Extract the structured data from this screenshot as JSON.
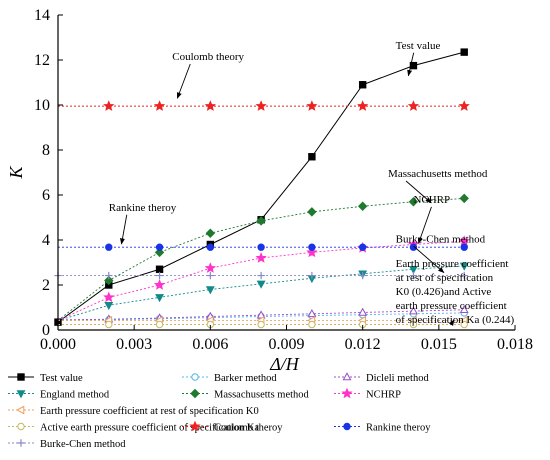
{
  "chart_data": {
    "type": "line",
    "xlabel": "Δ/H",
    "ylabel": "K",
    "xlim": [
      0,
      0.018
    ],
    "ylim": [
      0,
      14
    ],
    "xticks": [
      "0.000",
      "0.003",
      "0.006",
      "0.009",
      "0.012",
      "0.015",
      "0.018"
    ],
    "yticks": [
      "0",
      "2",
      "4",
      "6",
      "8",
      "10",
      "12",
      "14"
    ],
    "grid": false,
    "legend_position": "bottom",
    "series": [
      {
        "name": "Test value",
        "color": "#000000",
        "marker": "square",
        "filled": true,
        "x": [
          0.0,
          0.002,
          0.004,
          0.006,
          0.008,
          0.01,
          0.012,
          0.014,
          0.016
        ],
        "y": [
          0.35,
          2.0,
          2.7,
          3.8,
          4.9,
          7.7,
          10.9,
          11.75,
          12.35
        ]
      },
      {
        "name": "Barker method",
        "color": "#4fb8e6",
        "marker": "circle",
        "filled": false,
        "x": [
          0.0,
          0.002,
          0.004,
          0.006,
          0.008,
          0.01,
          0.012,
          0.014,
          0.016
        ],
        "y": [
          0.42,
          0.45,
          0.5,
          0.55,
          0.6,
          0.64,
          0.68,
          0.72,
          0.76
        ]
      },
      {
        "name": "Dicleli method",
        "color": "#9a4fc8",
        "marker": "triangle-up",
        "filled": false,
        "x": [
          0.0,
          0.002,
          0.004,
          0.006,
          0.008,
          0.01,
          0.012,
          0.014,
          0.016
        ],
        "y": [
          0.45,
          0.48,
          0.53,
          0.6,
          0.66,
          0.72,
          0.78,
          0.84,
          0.9
        ]
      },
      {
        "name": "England method",
        "color": "#138a8a",
        "marker": "triangle-down",
        "filled": true,
        "x": [
          0.0,
          0.002,
          0.004,
          0.006,
          0.008,
          0.01,
          0.012,
          0.014,
          0.016
        ],
        "y": [
          0.42,
          1.1,
          1.45,
          1.8,
          2.05,
          2.3,
          2.5,
          2.7,
          2.85
        ]
      },
      {
        "name": "Massachusetts method",
        "color": "#1e7a2e",
        "marker": "diamond",
        "filled": true,
        "x": [
          0.0,
          0.002,
          0.004,
          0.006,
          0.008,
          0.01,
          0.012,
          0.014,
          0.016
        ],
        "y": [
          0.42,
          2.2,
          3.45,
          4.3,
          4.85,
          5.25,
          5.5,
          5.7,
          5.85
        ]
      },
      {
        "name": "NCHRP",
        "color": "#ff33cc",
        "marker": "star",
        "filled": true,
        "x": [
          0.0,
          0.002,
          0.004,
          0.006,
          0.008,
          0.01,
          0.012,
          0.014,
          0.016
        ],
        "y": [
          0.42,
          1.45,
          2.0,
          2.75,
          3.2,
          3.45,
          3.65,
          3.8,
          3.95
        ]
      },
      {
        "name": "Earth pressure coefficient at rest of specification K0",
        "color": "#f0a060",
        "marker": "triangle-left",
        "filled": false,
        "x": [
          0.0,
          0.002,
          0.004,
          0.006,
          0.008,
          0.01,
          0.012,
          0.014,
          0.016
        ],
        "y": [
          0.426,
          0.426,
          0.426,
          0.426,
          0.426,
          0.426,
          0.426,
          0.426,
          0.426
        ]
      },
      {
        "name": "Active earth pressure coefficient of specification Ka",
        "color": "#c8b860",
        "marker": "circle",
        "filled": false,
        "x": [
          0.0,
          0.002,
          0.004,
          0.006,
          0.008,
          0.01,
          0.012,
          0.014,
          0.016
        ],
        "y": [
          0.244,
          0.244,
          0.244,
          0.244,
          0.244,
          0.244,
          0.244,
          0.244,
          0.244
        ]
      },
      {
        "name": "Coulomb theroy",
        "color": "#ee2222",
        "marker": "star",
        "filled": true,
        "x": [
          0.0,
          0.002,
          0.004,
          0.006,
          0.008,
          0.01,
          0.012,
          0.014,
          0.016
        ],
        "y": [
          9.95,
          9.95,
          9.95,
          9.95,
          9.95,
          9.95,
          9.95,
          9.95,
          9.95
        ]
      },
      {
        "name": "Rankine theroy",
        "color": "#1a33e6",
        "marker": "circle",
        "filled": true,
        "x": [
          0.0,
          0.002,
          0.004,
          0.006,
          0.008,
          0.01,
          0.012,
          0.014,
          0.016
        ],
        "y": [
          3.68,
          3.68,
          3.68,
          3.68,
          3.68,
          3.68,
          3.68,
          3.68,
          3.68
        ]
      },
      {
        "name": "Burke-Chen method",
        "color": "#8888cc",
        "marker": "plus",
        "filled": true,
        "x": [
          0.0,
          0.002,
          0.004,
          0.006,
          0.008,
          0.01,
          0.012,
          0.014,
          0.016
        ],
        "y": [
          2.42,
          2.42,
          2.42,
          2.42,
          2.42,
          2.42,
          2.42,
          2.42,
          2.42
        ]
      }
    ],
    "annotations": [
      {
        "text": "Test value",
        "x": 0.0133,
        "y": 12.5,
        "arrow_to": [
          0.0138,
          11.3
        ]
      },
      {
        "text": "Coulomb theory",
        "x": 0.0045,
        "y": 12.0,
        "arrow_to": [
          0.0047,
          10.3
        ]
      },
      {
        "text": "Massachusetts method",
        "x": 0.013,
        "y": 6.8,
        "arrow_to": [
          0.0147,
          5.65
        ]
      },
      {
        "text": "NCHRP",
        "x": 0.014,
        "y": 5.65,
        "arrow_to": [
          0.0142,
          3.85
        ]
      },
      {
        "text": "Rankine theroy",
        "x": 0.002,
        "y": 5.3,
        "arrow_to": [
          0.0025,
          3.82
        ]
      },
      {
        "text": "Burke-Chen method",
        "x": 0.0133,
        "y": 3.9,
        "arrow_to": [
          0.0152,
          2.55
        ]
      },
      {
        "lines": [
          "Earth pressure coefficient",
          "at rest of specification",
          "K0 (0.426)and Active",
          "earth pressure coefficient",
          "of specification Ka (0.244)"
        ],
        "x": 0.0133,
        "y": 2.8,
        "arrow_to": [
          0.0156,
          0.45
        ]
      }
    ]
  },
  "legend": {
    "rows": [
      [
        {
          "series": 0,
          "label": "Test value"
        },
        {
          "series": 1,
          "label": "Barker method"
        },
        {
          "series": 2,
          "label": "Dicleli method"
        }
      ],
      [
        {
          "series": 3,
          "label": "England method"
        },
        {
          "series": 4,
          "label": "Massachusetts method"
        },
        {
          "series": 5,
          "label": "NCHRP"
        }
      ],
      [
        {
          "series": 6,
          "label": "Earth pressure coefficient at rest of specification K0"
        }
      ],
      [
        {
          "series": 7,
          "label": "Active earth pressure coefficient of specification Ka"
        },
        {
          "series": 8,
          "label": "Coulomb theroy"
        },
        {
          "series": 9,
          "label": "Rankine theroy"
        }
      ],
      [
        {
          "series": 10,
          "label": "Burke-Chen method"
        }
      ]
    ]
  }
}
